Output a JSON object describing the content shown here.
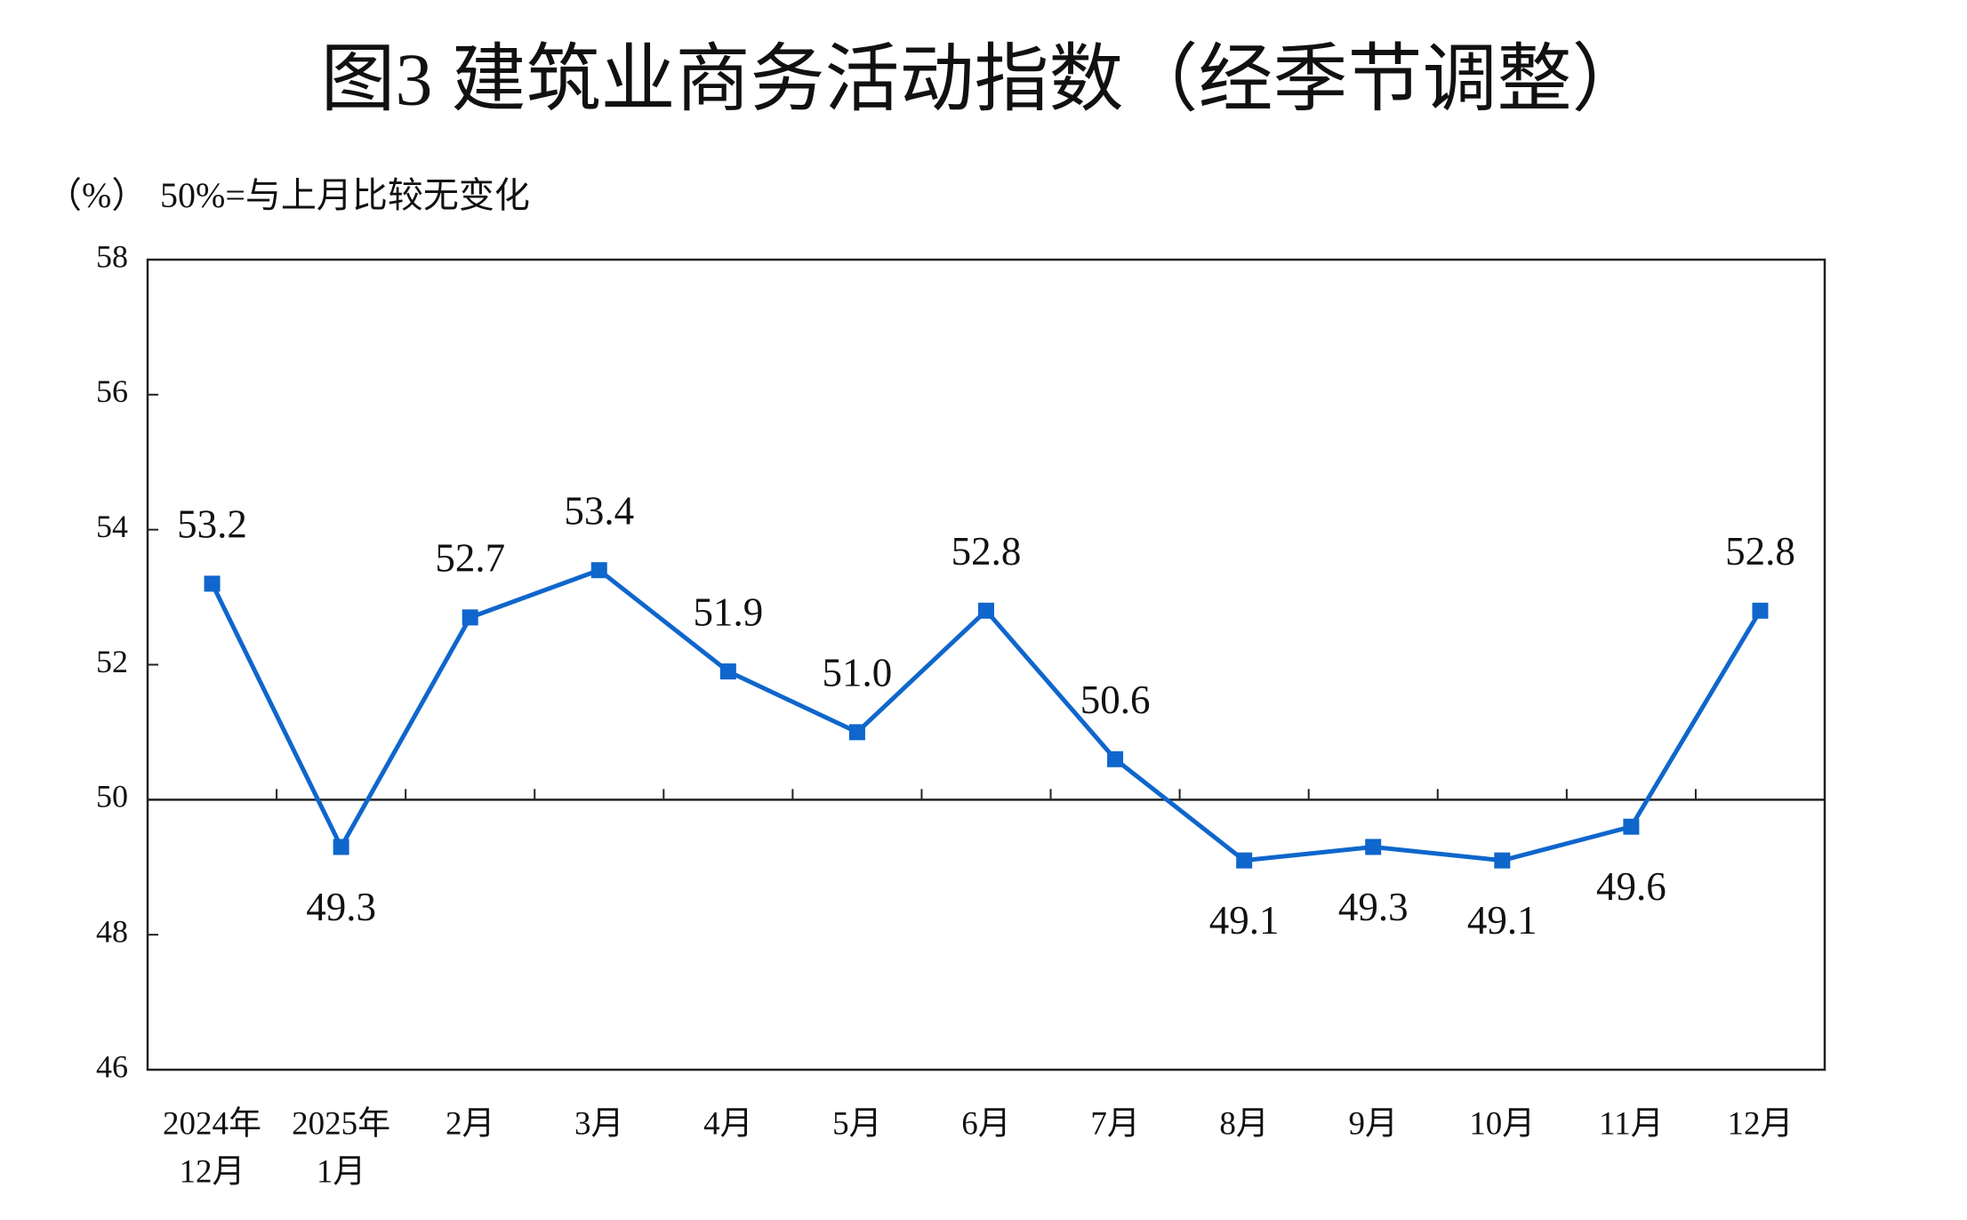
{
  "chart_data": {
    "type": "line",
    "title": "图3  建筑业商务活动指数（经季节调整）",
    "y_label": "（%）",
    "annotation": "50%=与上月比较无变化",
    "categories": [
      [
        "2024年",
        "12月"
      ],
      [
        "2025年",
        "1月"
      ],
      [
        "2月"
      ],
      [
        "3月"
      ],
      [
        "4月"
      ],
      [
        "5月"
      ],
      [
        "6月"
      ],
      [
        "7月"
      ],
      [
        "8月"
      ],
      [
        "9月"
      ],
      [
        "10月"
      ],
      [
        "11月"
      ],
      [
        "12月"
      ]
    ],
    "series": [
      {
        "name": "建筑业商务活动指数",
        "color": "#0f66cc",
        "values": [
          53.2,
          49.3,
          52.7,
          53.4,
          51.9,
          51.0,
          52.8,
          50.6,
          49.1,
          49.3,
          49.1,
          49.6,
          52.8
        ],
        "value_labels": [
          "53.2",
          "49.3",
          "52.7",
          "53.4",
          "51.9",
          "51.0",
          "52.8",
          "50.6",
          "49.1",
          "49.3",
          "49.1",
          "49.6",
          "52.8"
        ]
      }
    ],
    "reference_line": 50,
    "ylim": [
      46,
      58
    ],
    "yticks": [
      46,
      48,
      50,
      52,
      54,
      56,
      58
    ]
  }
}
